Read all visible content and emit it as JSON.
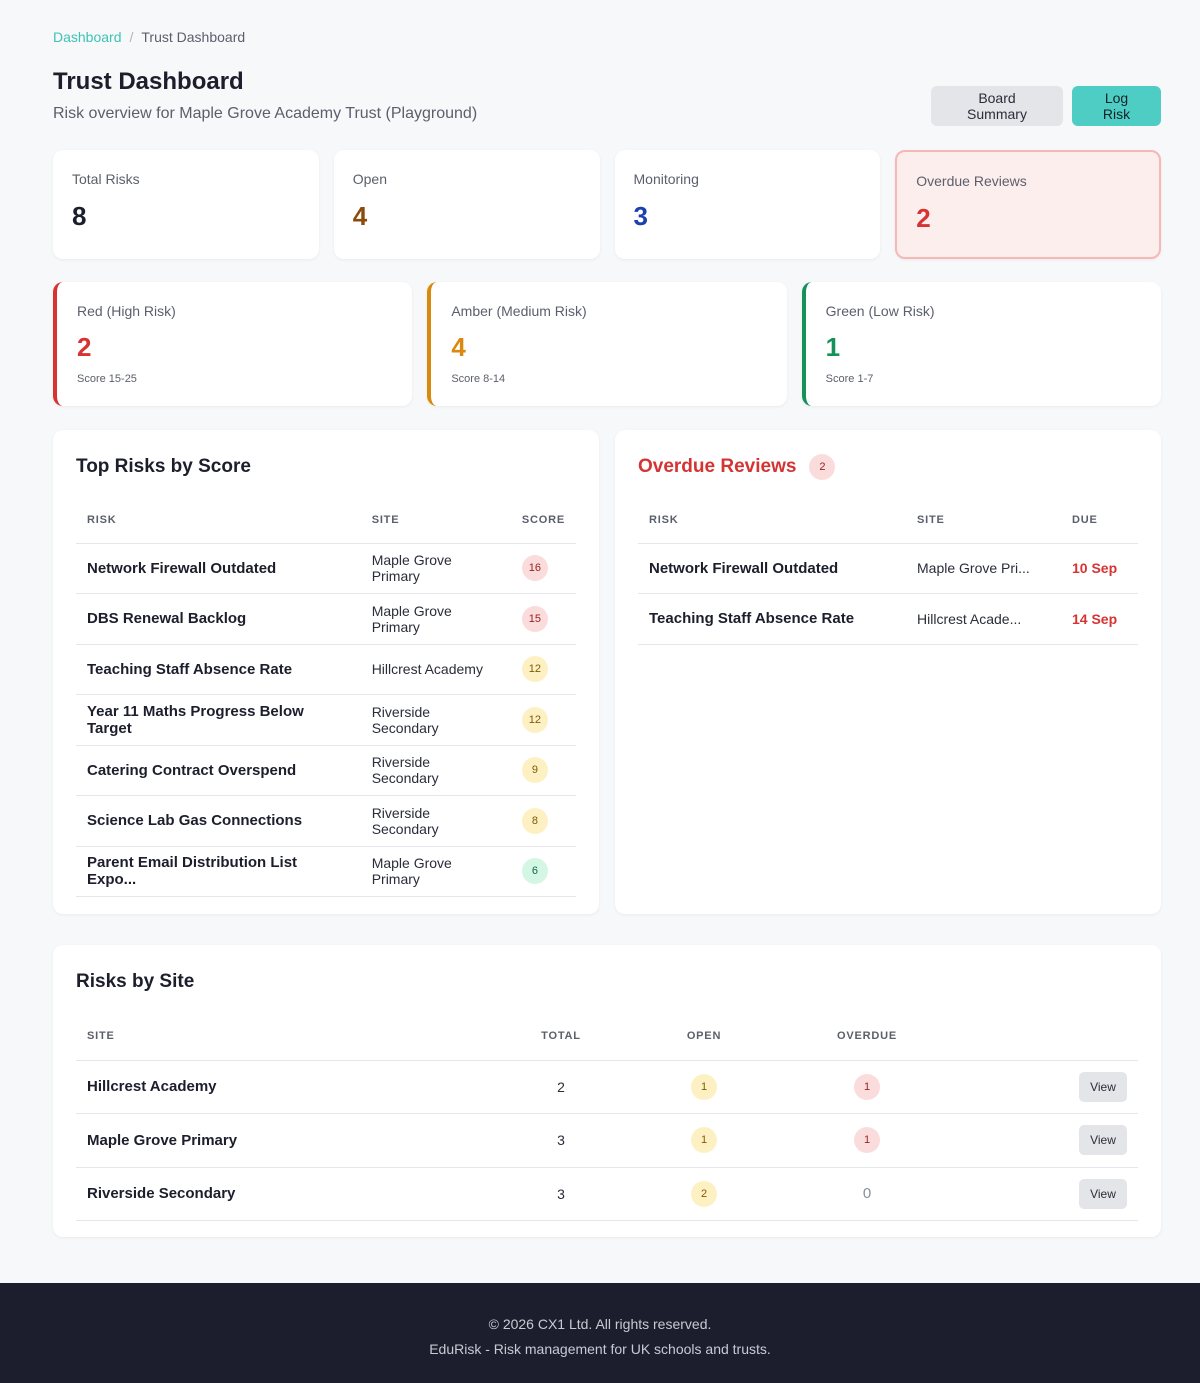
{
  "breadcrumb": {
    "home": "Dashboard",
    "sep": "/",
    "current": "Trust Dashboard"
  },
  "header": {
    "title": "Trust Dashboard",
    "subtitle": "Risk overview for Maple Grove Academy Trust (Playground)",
    "board_summary_label": "Board Summary",
    "log_risk_label": "Log Risk"
  },
  "stats": [
    {
      "label": "Total Risks",
      "value": "8",
      "color": "#1c1e2c"
    },
    {
      "label": "Open",
      "value": "4",
      "color": "#8a4b0c"
    },
    {
      "label": "Monitoring",
      "value": "3",
      "color": "#1e40af"
    },
    {
      "label": "Overdue Reviews",
      "value": "2",
      "color": "#d63333"
    }
  ],
  "rag": [
    {
      "label": "Red (High Risk)",
      "value": "2",
      "sub": "Score 15-25",
      "color": "#d63333"
    },
    {
      "label": "Amber (Medium Risk)",
      "value": "4",
      "sub": "Score 8-14",
      "color": "#d98a0e"
    },
    {
      "label": "Green (Low Risk)",
      "value": "1",
      "sub": "Score 1-7",
      "color": "#14925a"
    }
  ],
  "top_risks": {
    "title": "Top Risks by Score",
    "columns": [
      "RISK",
      "SITE",
      "SCORE"
    ],
    "rows": [
      {
        "risk": "Network Firewall Outdated",
        "site": "Maple Grove Primary",
        "score": "16",
        "level": "red"
      },
      {
        "risk": "DBS Renewal Backlog",
        "site": "Maple Grove Primary",
        "score": "15",
        "level": "red"
      },
      {
        "risk": "Teaching Staff Absence Rate",
        "site": "Hillcrest Academy",
        "score": "12",
        "level": "amber"
      },
      {
        "risk": "Year 11 Maths Progress Below Target",
        "site": "Riverside Secondary",
        "score": "12",
        "level": "amber"
      },
      {
        "risk": "Catering Contract Overspend",
        "site": "Riverside Secondary",
        "score": "9",
        "level": "amber"
      },
      {
        "risk": "Science Lab Gas Connections",
        "site": "Riverside Secondary",
        "score": "8",
        "level": "amber"
      },
      {
        "risk": "Parent Email Distribution List Expo...",
        "site": "Maple Grove Primary",
        "score": "6",
        "level": "green"
      }
    ]
  },
  "overdue": {
    "title": "Overdue Reviews",
    "count": "2",
    "columns": [
      "RISK",
      "SITE",
      "DUE"
    ],
    "rows": [
      {
        "risk": "Network Firewall Outdated",
        "site": "Maple Grove Pri...",
        "due": "10 Sep"
      },
      {
        "risk": "Teaching Staff Absence Rate",
        "site": "Hillcrest Acade...",
        "due": "14 Sep"
      }
    ]
  },
  "sites": {
    "title": "Risks by Site",
    "columns": [
      "SITE",
      "TOTAL",
      "OPEN",
      "OVERDUE"
    ],
    "view_label": "View",
    "rows": [
      {
        "site": "Hillcrest Academy",
        "total": "2",
        "open": "1",
        "overdue": "1"
      },
      {
        "site": "Maple Grove Primary",
        "total": "3",
        "open": "1",
        "overdue": "1"
      },
      {
        "site": "Riverside Secondary",
        "total": "3",
        "open": "2",
        "overdue": "0"
      }
    ]
  },
  "footer": {
    "copyright": "© 2026 CX1 Ltd. All rights reserved.",
    "tagline": "EduRisk - Risk management for UK schools and trusts."
  }
}
